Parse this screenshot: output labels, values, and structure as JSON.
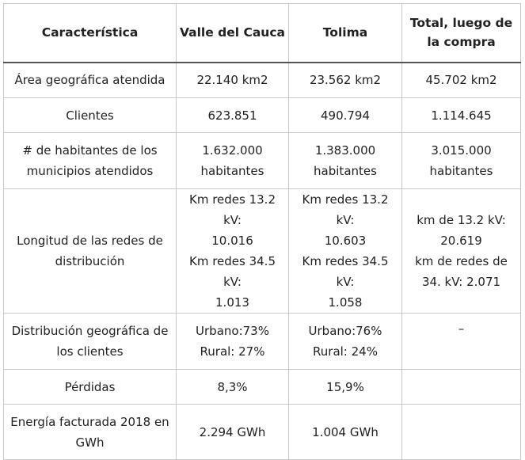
{
  "headers": [
    "Característica",
    "Valle del Cauca",
    "Tolima",
    "Total, luego de la compra"
  ],
  "rows": [
    {
      "feature": [
        "Área geográfica atendida"
      ],
      "valle": [
        "22.140 km2"
      ],
      "tolima": [
        "23.562 km2"
      ],
      "total": [
        "45.702 km2"
      ]
    },
    {
      "feature": [
        "Clientes"
      ],
      "valle": [
        "623.851"
      ],
      "tolima": [
        "490.794"
      ],
      "total": [
        "1.114.645"
      ]
    },
    {
      "feature": [
        "# de habitantes de los",
        "municipios atendidos"
      ],
      "valle": [
        "1.632.000",
        "habitantes"
      ],
      "tolima": [
        "1.383.000",
        "habitantes"
      ],
      "total": [
        "3.015.000",
        "habitantes"
      ]
    },
    {
      "feature": [
        "Longitud de las redes de",
        "distribución"
      ],
      "valle": [
        "Km redes 13.2 kV:",
        "10.016",
        "Km redes 34.5 kV:",
        "1.013"
      ],
      "tolima": [
        "Km redes 13.2 kV:",
        "10.603",
        "Km redes 34.5 kV:",
        "1.058"
      ],
      "total": [
        "km de 13.2 kV:",
        "20.619",
        "km de redes de",
        "34. kV: 2.071"
      ]
    },
    {
      "feature": [
        "Distribución geográfica de",
        "los clientes"
      ],
      "valle": [
        "Urbano:73%",
        "Rural: 27%"
      ],
      "tolima": [
        "Urbano:76%",
        "Rural: 24%"
      ],
      "total": [
        "–"
      ]
    },
    {
      "feature": [
        "Pérdidas"
      ],
      "valle": [
        "8,3%"
      ],
      "tolima": [
        "15,9%"
      ],
      "total": []
    },
    {
      "feature": [
        "Energía facturada 2018 en",
        "GWh"
      ],
      "valle": [
        "2.294 GWh"
      ],
      "tolima": [
        "1.004 GWh"
      ],
      "total": []
    }
  ]
}
